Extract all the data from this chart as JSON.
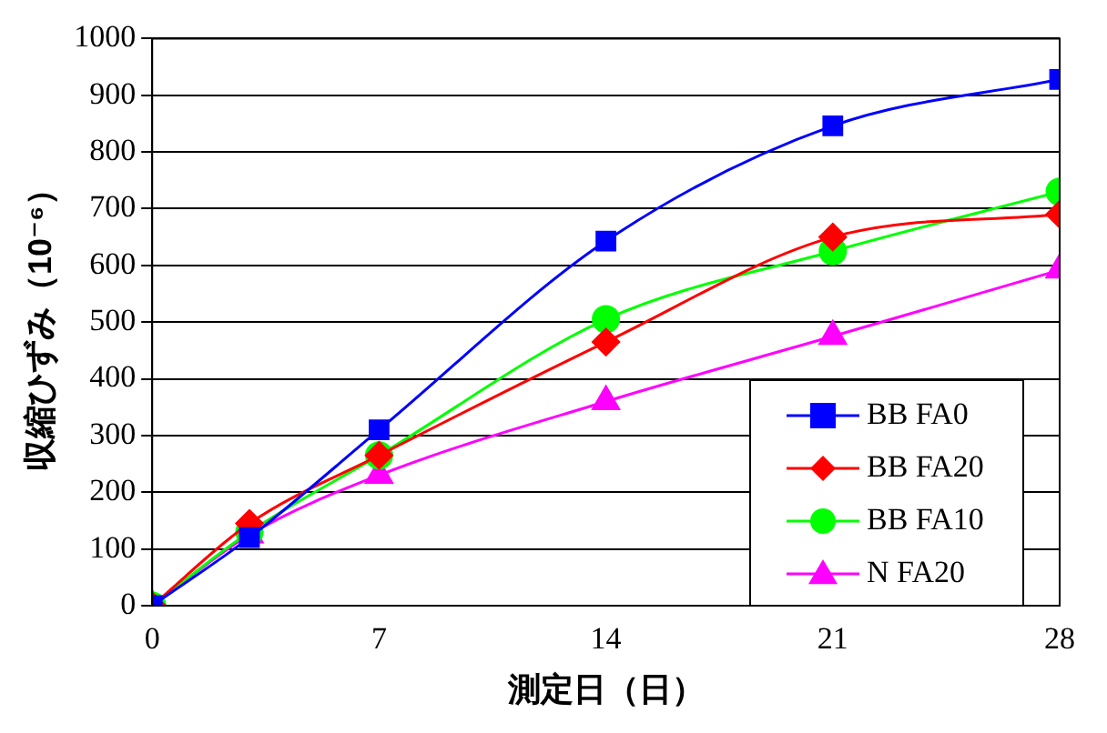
{
  "chart_data": {
    "type": "line",
    "xlabel": "測定日（日）",
    "ylabel": "収縮ひずみ（10⁻⁶）",
    "x": [
      0,
      3,
      7,
      14,
      21,
      28
    ],
    "xlim": [
      0,
      28
    ],
    "xticks": [
      0,
      7,
      14,
      21,
      28
    ],
    "ylim": [
      0,
      1000
    ],
    "yticks": [
      0,
      100,
      200,
      300,
      400,
      500,
      600,
      700,
      800,
      900,
      1000
    ],
    "grid": "y",
    "legend": "bottom right",
    "series": [
      {
        "name": "BB FA0",
        "color": "#0000ff",
        "marker": "square",
        "values": [
          0,
          120,
          310,
          643,
          846,
          928
        ]
      },
      {
        "name": "BB FA20",
        "color": "#ff0000",
        "marker": "diamond",
        "values": [
          0,
          145,
          265,
          465,
          650,
          690
        ]
      },
      {
        "name": "BB FA10",
        "color": "#00ff00",
        "marker": "circle",
        "values": [
          0,
          130,
          265,
          505,
          625,
          730
        ]
      },
      {
        "name": "N FA20",
        "color": "#ff00ff",
        "marker": "triangle",
        "values": [
          0,
          125,
          230,
          360,
          475,
          592
        ]
      }
    ]
  }
}
